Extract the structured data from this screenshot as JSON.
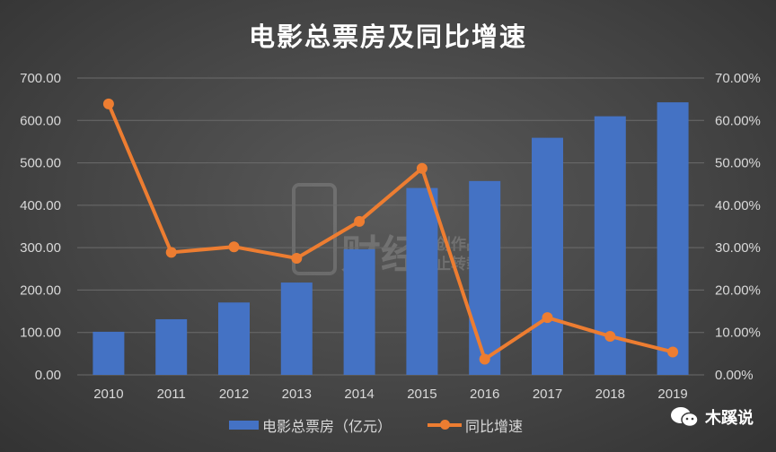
{
  "chart_data": {
    "type": "bar+line",
    "title": "电影总票房及同比增速",
    "categories": [
      "2010",
      "2011",
      "2012",
      "2013",
      "2014",
      "2015",
      "2016",
      "2017",
      "2018",
      "2019"
    ],
    "series": [
      {
        "name": "电影总票房（亿元）",
        "type": "bar",
        "axis": "left",
        "color": "#4472c4",
        "values": [
          101.7,
          131.2,
          170.7,
          217.7,
          296.4,
          440.7,
          457.1,
          559.1,
          609.8,
          642.7
        ]
      },
      {
        "name": "同比增速",
        "type": "line",
        "axis": "right",
        "color": "#ed7d31",
        "values": [
          63.9,
          28.9,
          30.2,
          27.5,
          36.2,
          48.7,
          3.7,
          13.5,
          9.1,
          5.4
        ]
      }
    ],
    "y_left": {
      "range": [
        0,
        700
      ],
      "ticks": [
        "0.00",
        "100.00",
        "200.00",
        "300.00",
        "400.00",
        "500.00",
        "600.00",
        "700.00"
      ]
    },
    "y_right": {
      "range": [
        0,
        70
      ],
      "ticks": [
        "0.00%",
        "10.00%",
        "20.00%",
        "30.00%",
        "40.00%",
        "50.00%",
        "60.00%",
        "70.00%"
      ]
    },
    "grid": true,
    "legend_placement": "bottom"
  },
  "watermark": {
    "logo": "财经",
    "text1": "原创作品",
    "text2": "禁止转载"
  },
  "brand": {
    "icon": "wechat-icon",
    "name": "木蹊说"
  }
}
